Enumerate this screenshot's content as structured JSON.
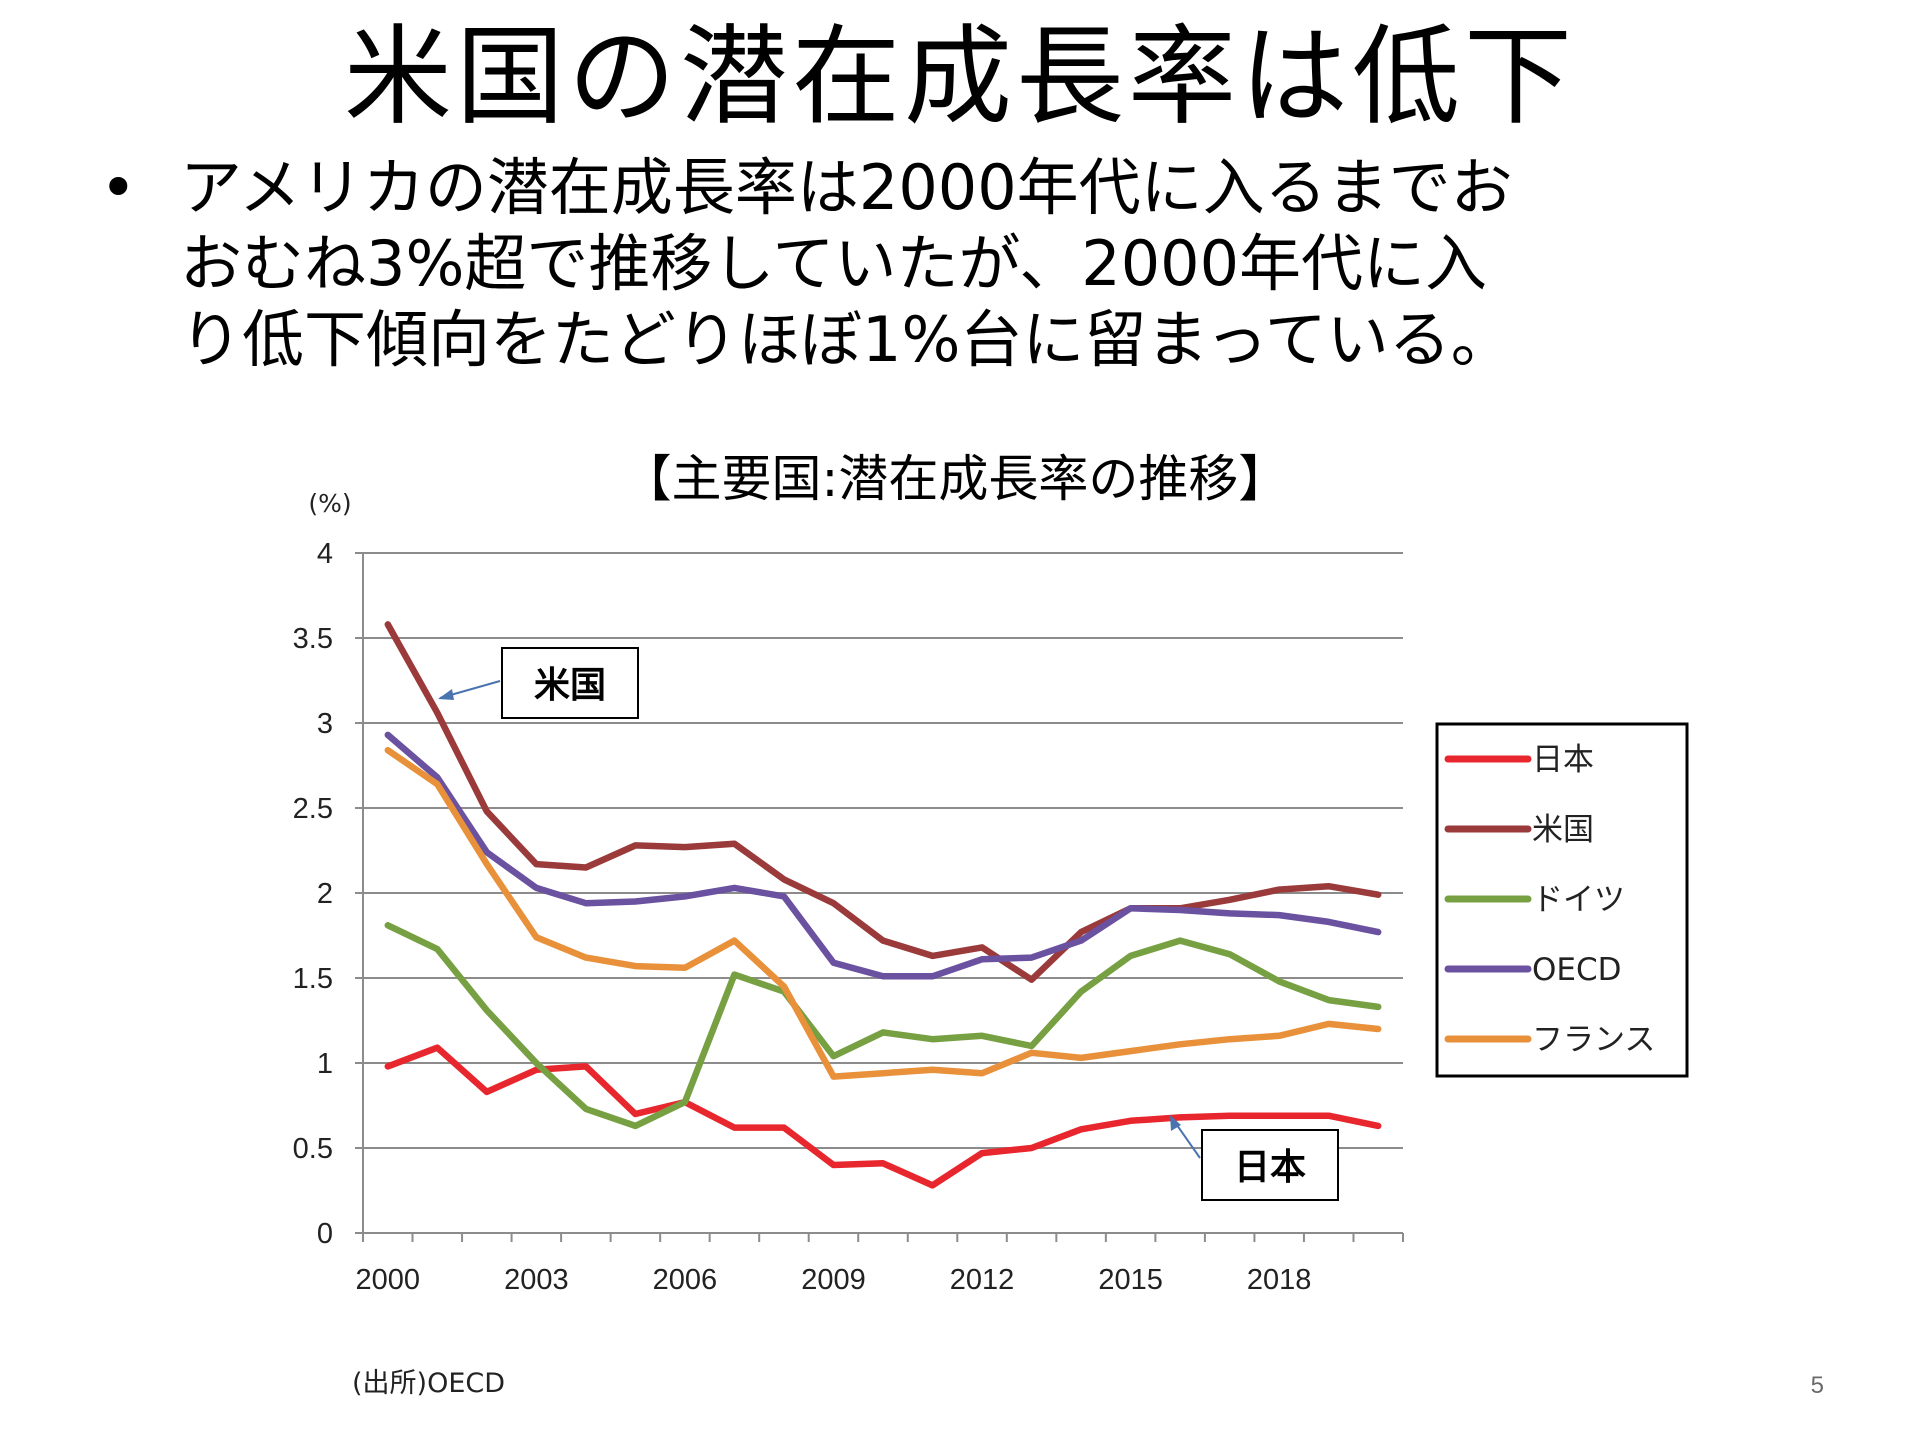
{
  "slide": {
    "title": "米国の潜在成長率は低下",
    "bullet_symbol": "•",
    "bullet_lines": [
      "アメリカの潜在成長率は2000年代に入るまでお",
      "おむね3%超で推移していたが、2000年代に入",
      "り低下傾向をたどりほぼ1%台に留まっている。"
    ],
    "page_number": "5"
  },
  "chart_data": {
    "type": "line",
    "title": "【主要国:潜在成長率の推移】",
    "ylabel": "(%)",
    "xlabel": "",
    "ylim": [
      0,
      4
    ],
    "y_ticks": [
      "0",
      "0.5",
      "1",
      "1.5",
      "2",
      "2.5",
      "3",
      "3.5",
      "4"
    ],
    "x": [
      2000,
      2001,
      2002,
      2003,
      2004,
      2005,
      2006,
      2007,
      2008,
      2009,
      2010,
      2011,
      2012,
      2013,
      2014,
      2015,
      2016,
      2017,
      2018,
      2019,
      2020
    ],
    "x_ticks": [
      "2000",
      "2003",
      "2006",
      "2009",
      "2012",
      "2015",
      "2018"
    ],
    "grid": true,
    "legend_position": "right",
    "series": [
      {
        "name": "日本",
        "color": "#e8262d",
        "values": [
          0.98,
          1.09,
          0.83,
          0.96,
          0.98,
          0.7,
          0.77,
          0.62,
          0.62,
          0.4,
          0.41,
          0.28,
          0.47,
          0.5,
          0.61,
          0.66,
          0.68,
          0.69,
          0.69,
          0.69,
          0.63
        ]
      },
      {
        "name": "米国",
        "color": "#9b3a3a",
        "values": [
          3.58,
          3.06,
          2.48,
          2.17,
          2.15,
          2.28,
          2.27,
          2.29,
          2.08,
          1.94,
          1.72,
          1.63,
          1.68,
          1.49,
          1.77,
          1.91,
          1.91,
          1.96,
          2.02,
          2.04,
          1.99
        ]
      },
      {
        "name": "ドイツ",
        "color": "#77a043",
        "values": [
          1.81,
          1.67,
          1.31,
          1.0,
          0.73,
          0.63,
          0.77,
          1.52,
          1.42,
          1.04,
          1.18,
          1.14,
          1.16,
          1.1,
          1.42,
          1.63,
          1.72,
          1.64,
          1.48,
          1.37,
          1.33
        ]
      },
      {
        "name": "OECD",
        "color": "#6a52a0",
        "values": [
          2.93,
          2.68,
          2.24,
          2.03,
          1.94,
          1.95,
          1.98,
          2.03,
          1.98,
          1.59,
          1.51,
          1.51,
          1.61,
          1.62,
          1.72,
          1.91,
          1.9,
          1.88,
          1.87,
          1.83,
          1.77
        ]
      },
      {
        "name": "フランス",
        "color": "#e8913a",
        "values": [
          2.84,
          2.64,
          2.17,
          1.74,
          1.62,
          1.57,
          1.56,
          1.72,
          1.45,
          0.92,
          0.94,
          0.96,
          0.94,
          1.06,
          1.03,
          1.07,
          1.11,
          1.14,
          1.16,
          1.23,
          1.2
        ]
      }
    ],
    "annotations": [
      {
        "text": "米国",
        "series": "米国"
      },
      {
        "text": "日本",
        "series": "日本"
      }
    ],
    "source": "(出所)OECD"
  }
}
